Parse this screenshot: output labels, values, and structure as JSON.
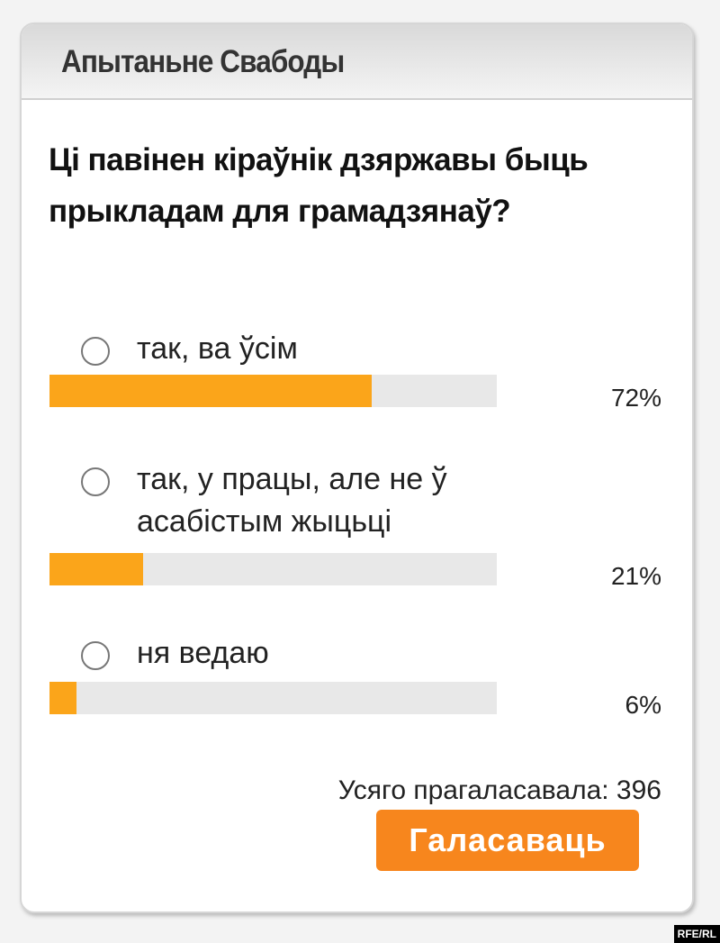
{
  "poll": {
    "title": "Апытаньне Свабоды",
    "question": "Ці павінен кіраўнік дзяржавы быць прыкладам для грамадзянаў?",
    "options": [
      {
        "label": "так, ва ўсім",
        "percent_label": "72%",
        "percent": 72
      },
      {
        "label": "так, у працы, але не ў асабістым жыцьці",
        "percent_label": "21%",
        "percent": 21
      },
      {
        "label": "ня ведаю",
        "percent_label": "6%",
        "percent": 6
      }
    ],
    "total": "Усяго прагаласавала: 396",
    "vote_button": "Галасаваць",
    "bar_color": "#fba51a",
    "button_color": "#f7861d"
  },
  "watermark": "RFE/RL"
}
